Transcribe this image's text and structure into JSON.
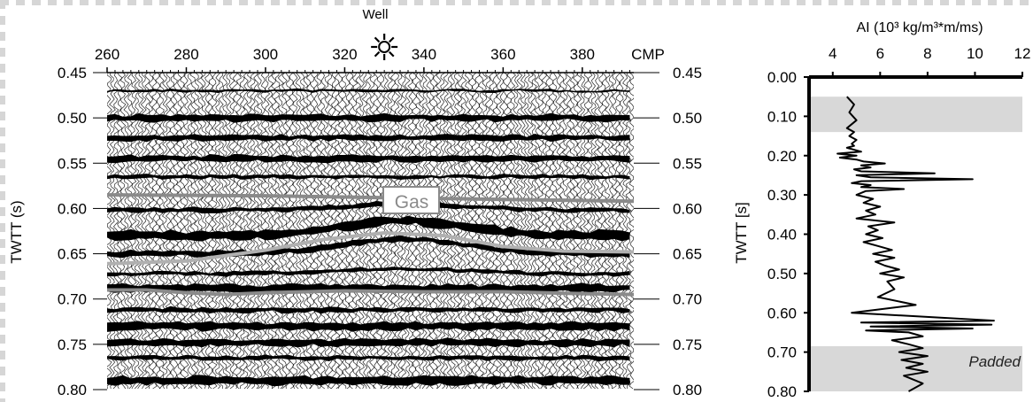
{
  "chart_data": [
    {
      "type": "seismic-section",
      "well_label": "Well",
      "top_axis_unit": "CMP",
      "x_ticks": [
        260,
        280,
        300,
        320,
        340,
        360,
        380
      ],
      "x_range": [
        260,
        393
      ],
      "well_cmp": 330,
      "y_label": "TWTT (s)",
      "y_ticks": [
        "0.45",
        "0.50",
        "0.55",
        "0.60",
        "0.65",
        "0.70",
        "0.75",
        "0.80"
      ],
      "y_range": [
        0.45,
        0.8
      ],
      "gas_label": "Gas",
      "horizons": [
        {
          "name": "upper",
          "color": "#8a8a8a",
          "x": [
            260,
            300,
            330,
            360,
            393
          ],
          "y": [
            0.585,
            0.586,
            0.588,
            0.59,
            0.592
          ]
        },
        {
          "name": "gas-top",
          "color": "#b0b0b0",
          "x": [
            260,
            280,
            300,
            315,
            330,
            345,
            360,
            375,
            393
          ],
          "y": [
            0.661,
            0.658,
            0.646,
            0.634,
            0.627,
            0.63,
            0.642,
            0.647,
            0.648
          ]
        },
        {
          "name": "lower",
          "color": "#8a8a8a",
          "x": [
            260,
            270,
            280,
            290,
            300,
            320,
            340,
            360,
            380,
            393
          ],
          "y": [
            0.69,
            0.69,
            0.693,
            0.695,
            0.693,
            0.691,
            0.692,
            0.692,
            0.694,
            0.695
          ]
        }
      ]
    },
    {
      "type": "line",
      "title": "AI (10³ kg/m³*m/ms)",
      "x_ticks": [
        "4",
        "6",
        "8",
        "10",
        "12"
      ],
      "x_range": [
        3,
        12
      ],
      "y_label": "TWTT [s]",
      "y_ticks": [
        "0.00",
        "0.10",
        "0.20",
        "0.30",
        "0.40",
        "0.50",
        "0.60",
        "0.70",
        "0.80"
      ],
      "y_range": [
        0.0,
        0.8
      ],
      "shaded_bands": [
        {
          "y": [
            0.05,
            0.14
          ]
        },
        {
          "y": [
            0.685,
            0.8
          ]
        }
      ],
      "padded_label": "Padded",
      "series": [
        {
          "color": "#000000",
          "x": [
            4.6,
            4.9,
            4.7,
            5.0,
            4.6,
            4.9,
            4.7,
            5.0,
            4.8,
            4.9,
            4.6,
            5.2,
            4.2,
            5.0,
            4.3,
            5.0,
            5.3,
            6.2,
            5.2,
            5.6,
            4.9,
            5.2,
            8.3,
            5.0,
            5.6,
            9.9,
            5.2,
            4.8,
            5.6,
            5.2,
            7.0,
            5.4,
            5.0,
            5.7,
            5.3,
            6.0,
            5.4,
            5.8,
            5.0,
            6.6,
            5.5,
            5.9,
            5.4,
            6.1,
            5.3,
            5.9,
            6.5,
            5.7,
            6.6,
            5.8,
            6.2,
            6.8,
            6.0,
            7.0,
            6.3,
            6.6,
            5.9,
            7.5,
            4.8,
            10.8,
            5.2,
            10.7,
            5.6,
            9.9,
            5.4,
            7.2,
            7.8,
            6.5,
            7.2,
            7.8,
            6.8,
            8.0,
            6.9,
            7.8,
            7.1,
            8.0,
            7.0,
            7.8,
            7.2
          ],
          "y": [
            0.05,
            0.07,
            0.09,
            0.11,
            0.13,
            0.14,
            0.15,
            0.16,
            0.17,
            0.175,
            0.18,
            0.19,
            0.195,
            0.2,
            0.205,
            0.21,
            0.215,
            0.22,
            0.225,
            0.23,
            0.235,
            0.24,
            0.245,
            0.25,
            0.255,
            0.26,
            0.265,
            0.27,
            0.275,
            0.28,
            0.285,
            0.29,
            0.3,
            0.31,
            0.32,
            0.33,
            0.34,
            0.35,
            0.36,
            0.37,
            0.38,
            0.39,
            0.4,
            0.41,
            0.42,
            0.43,
            0.44,
            0.45,
            0.46,
            0.47,
            0.48,
            0.49,
            0.5,
            0.51,
            0.52,
            0.54,
            0.56,
            0.58,
            0.6,
            0.62,
            0.625,
            0.63,
            0.635,
            0.64,
            0.645,
            0.65,
            0.66,
            0.67,
            0.68,
            0.69,
            0.7,
            0.71,
            0.72,
            0.73,
            0.74,
            0.75,
            0.76,
            0.78,
            0.8
          ]
        }
      ]
    }
  ]
}
